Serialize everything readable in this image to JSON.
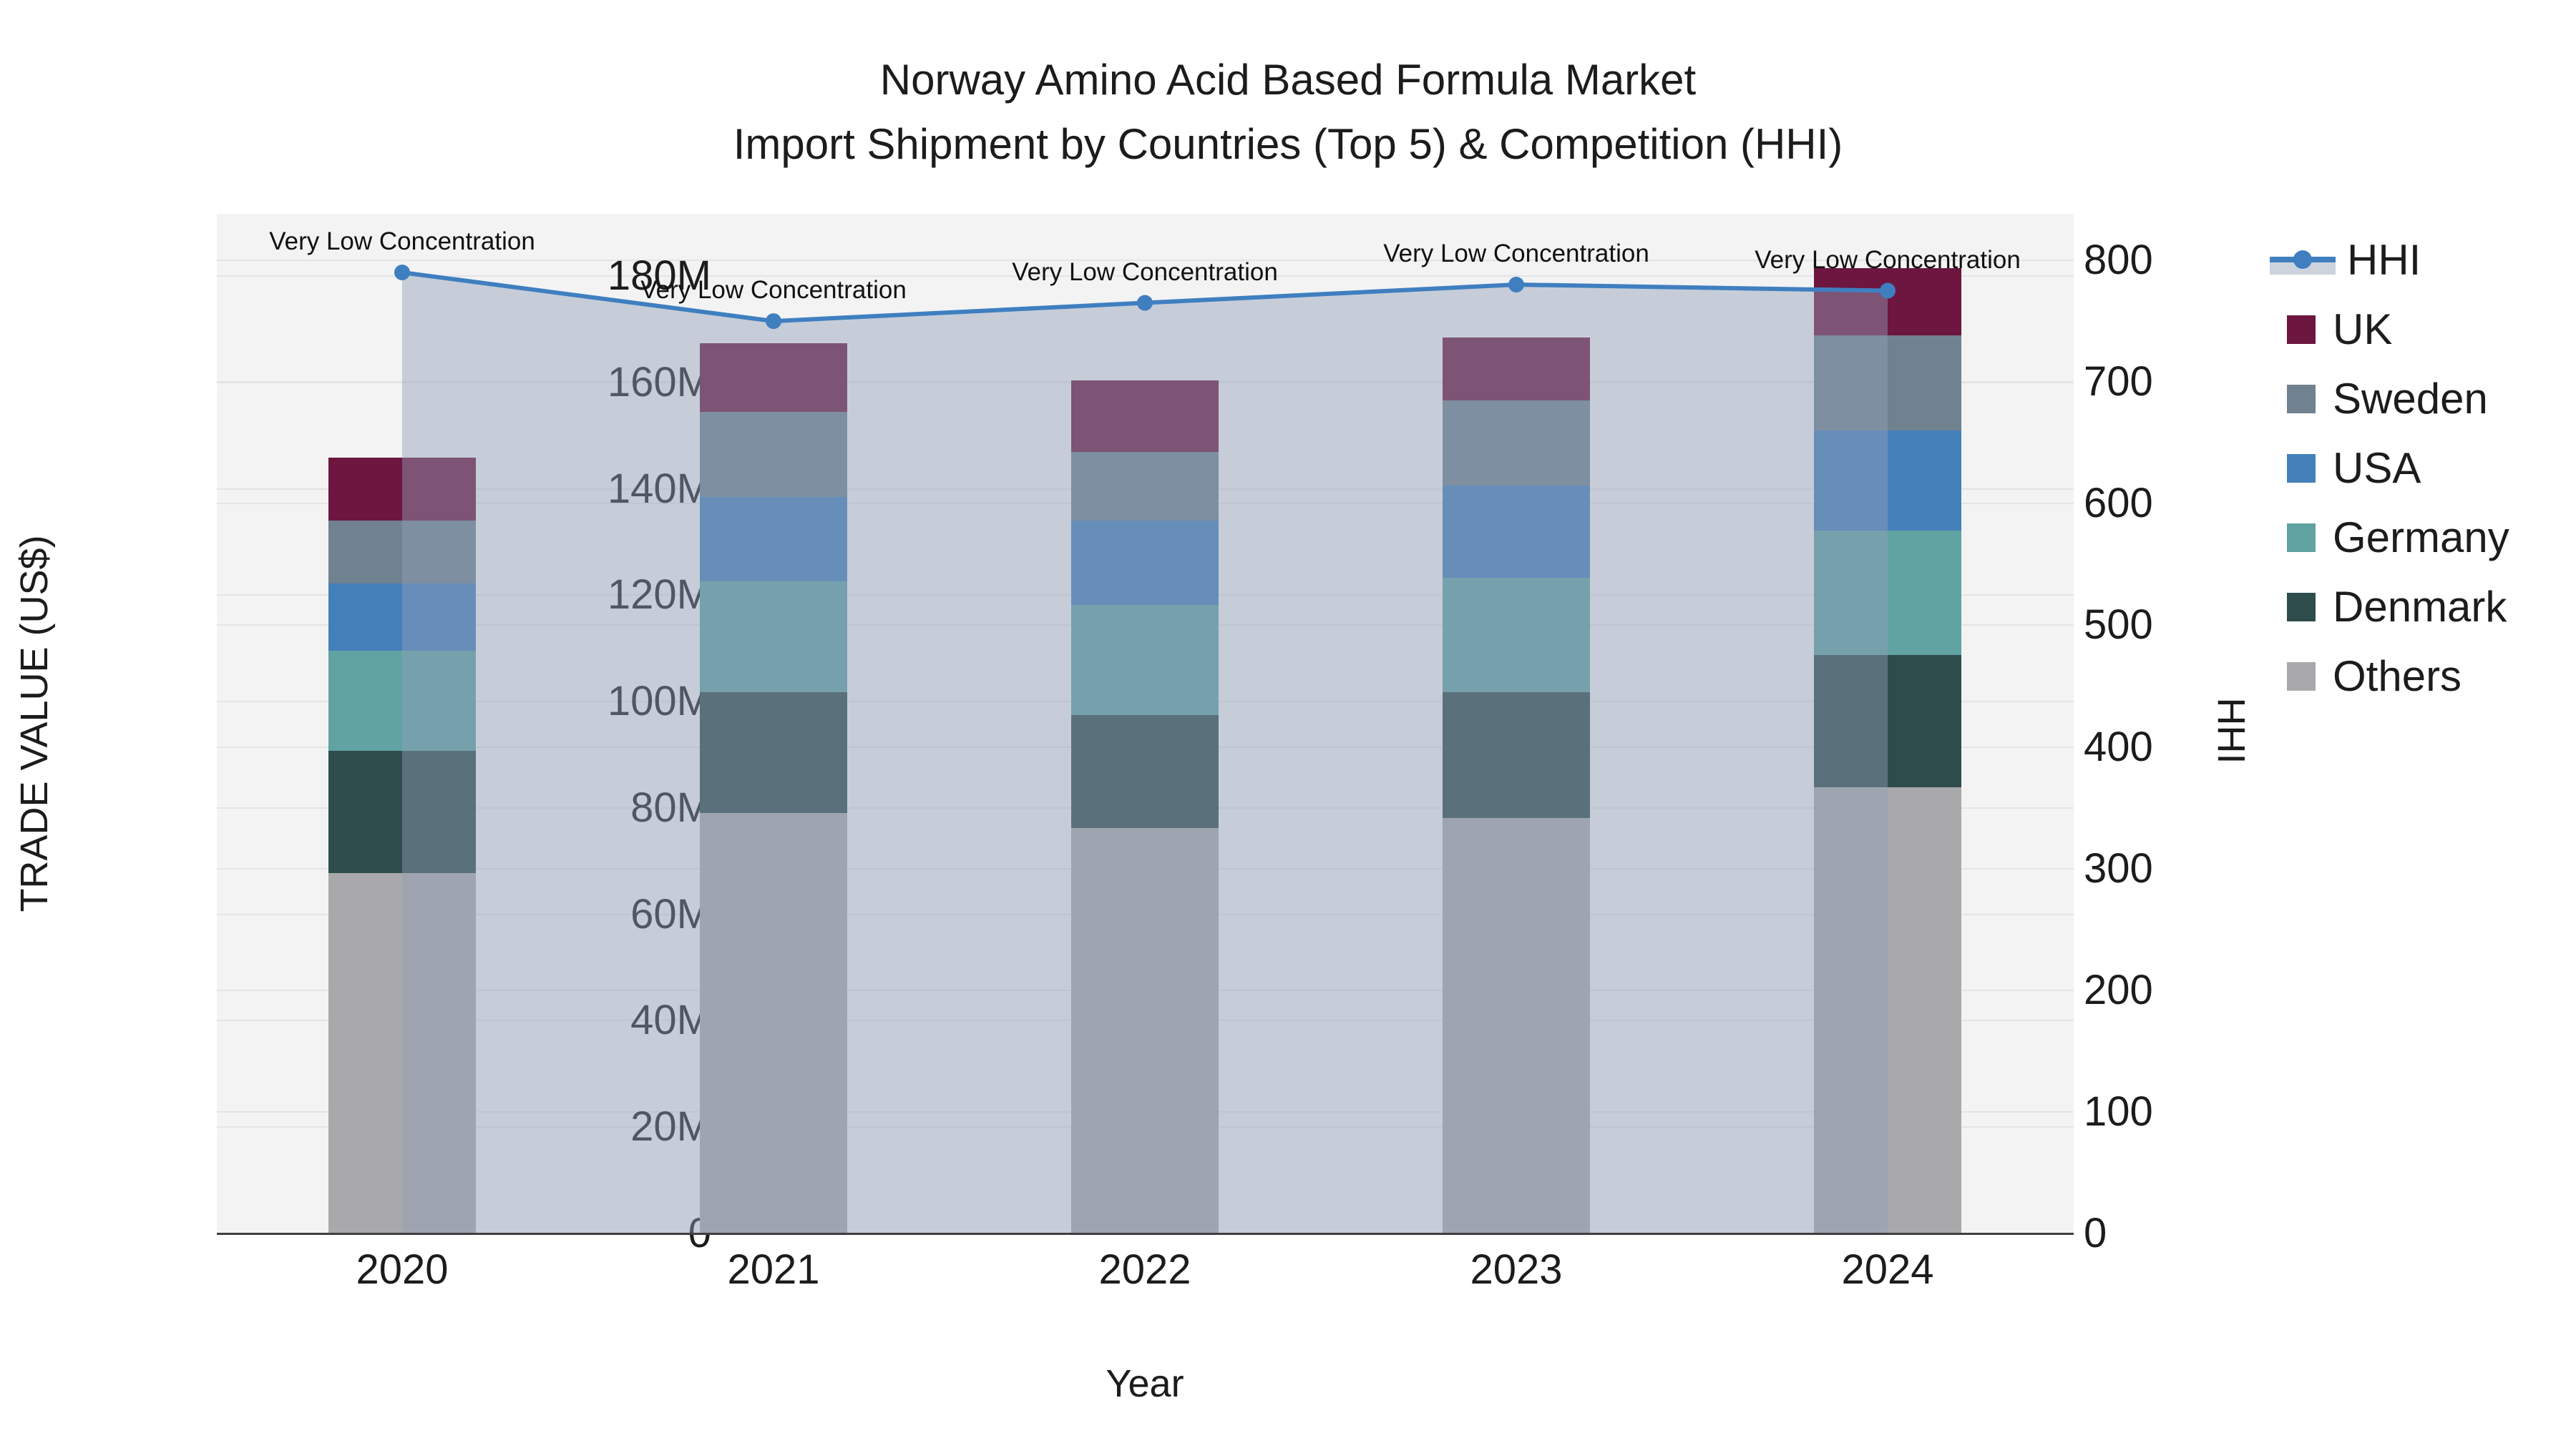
{
  "title": {
    "line1": "Norway Amino Acid Based Formula Market",
    "line2": "Import Shipment by Countries (Top 5) & Competition (HHI)"
  },
  "axes": {
    "x": {
      "title": "Year",
      "ticks": [
        "2020",
        "2021",
        "2022",
        "2023",
        "2024"
      ]
    },
    "y_left": {
      "title": "TRADE VALUE (US$)",
      "ticks": [
        "0",
        "20M",
        "40M",
        "60M",
        "80M",
        "100M",
        "120M",
        "140M",
        "160M",
        "180M"
      ],
      "tick_values": [
        0,
        20,
        40,
        60,
        80,
        100,
        120,
        140,
        160,
        180
      ]
    },
    "y_right": {
      "title": "HHI",
      "ticks": [
        "0",
        "100",
        "200",
        "300",
        "400",
        "500",
        "600",
        "700",
        "800"
      ],
      "tick_values": [
        0,
        100,
        200,
        300,
        400,
        500,
        600,
        700,
        800
      ]
    }
  },
  "annotation_label": "Very Low Concentration",
  "legend": {
    "items": [
      {
        "label": "HHI",
        "type": "line",
        "color": "#3f7fc0"
      },
      {
        "label": "UK",
        "type": "swatch",
        "color": "#6d163f"
      },
      {
        "label": "Sweden",
        "type": "swatch",
        "color": "#70818f"
      },
      {
        "label": "USA",
        "type": "swatch",
        "color": "#4480ba"
      },
      {
        "label": "Germany",
        "type": "swatch",
        "color": "#61a2a2"
      },
      {
        "label": "Denmark",
        "type": "swatch",
        "color": "#2e4c4b"
      },
      {
        "label": "Others",
        "type": "swatch",
        "color": "#a9a9ab"
      }
    ]
  },
  "chart_data": {
    "type": "bar+line",
    "title": "Norway Amino Acid Based Formula Market — Import Shipment by Countries (Top 5) & Competition (HHI)",
    "xlabel": "Year",
    "ylabel_left": "TRADE VALUE (US$)",
    "ylabel_right": "HHI",
    "categories": [
      "2020",
      "2021",
      "2022",
      "2023",
      "2024"
    ],
    "bar_value_unit": "million US$ (stacked, bottom to top)",
    "series": [
      {
        "name": "Others",
        "color": "#a9a9ab",
        "values": [
          67.8,
          79.1,
          76.2,
          78.1,
          83.9
        ]
      },
      {
        "name": "Denmark",
        "color": "#2e4c4b",
        "values": [
          23.0,
          22.7,
          21.2,
          23.7,
          24.9
        ]
      },
      {
        "name": "Germany",
        "color": "#61a2a2",
        "values": [
          18.8,
          20.8,
          20.8,
          21.5,
          23.3
        ]
      },
      {
        "name": "USA",
        "color": "#4480ba",
        "values": [
          12.6,
          15.8,
          15.8,
          17.3,
          18.9
        ]
      },
      {
        "name": "Sweden",
        "color": "#70818f",
        "values": [
          11.8,
          16.1,
          12.9,
          16.0,
          17.9
        ]
      },
      {
        "name": "UK",
        "color": "#6d163f",
        "values": [
          11.8,
          12.9,
          13.5,
          11.8,
          12.6
        ]
      }
    ],
    "stack_totals_millions": [
      145.8,
      167.4,
      160.4,
      168.4,
      181.5
    ],
    "line_series": {
      "name": "HHI",
      "color": "#3f7fc0",
      "area_fill": "rgba(145,160,185,0.45)",
      "values": [
        790,
        750,
        765,
        780,
        775
      ],
      "point_annotations": [
        "Very Low Concentration",
        "Very Low Concentration",
        "Very Low Concentration",
        "Very Low Concentration",
        "Very Low Concentration"
      ]
    },
    "ylim_left_millions": [
      0,
      191.7
    ],
    "ylim_right_hhi": [
      0,
      838
    ],
    "grid": true,
    "legend_position": "right"
  }
}
